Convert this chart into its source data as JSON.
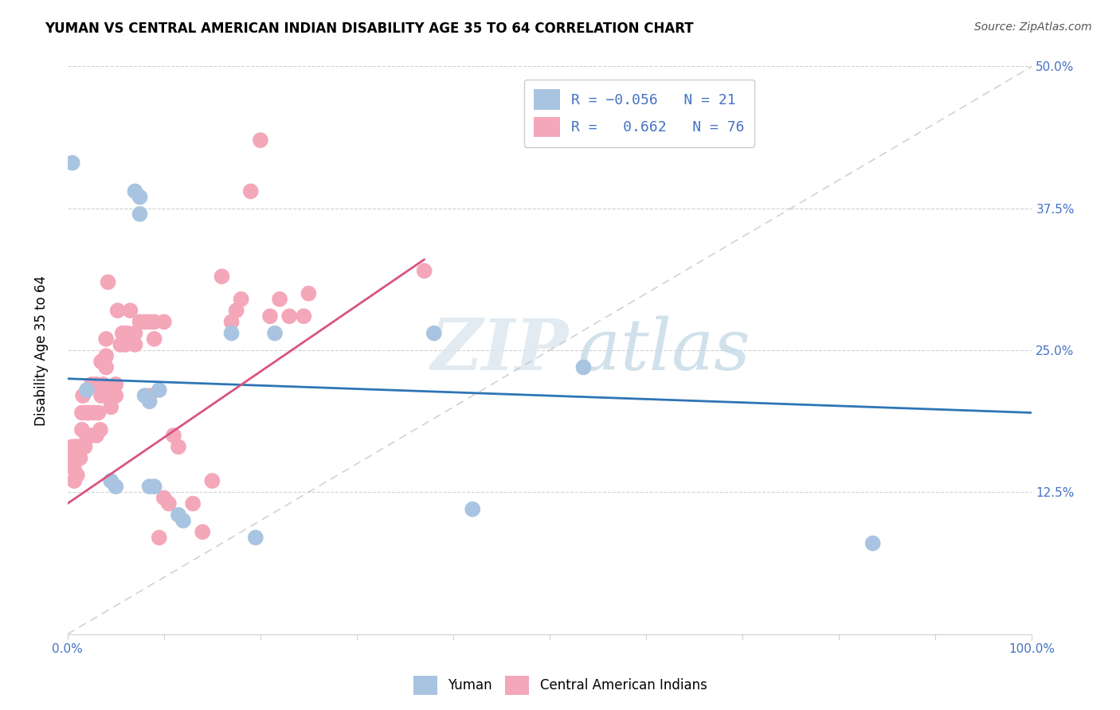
{
  "title": "YUMAN VS CENTRAL AMERICAN INDIAN DISABILITY AGE 35 TO 64 CORRELATION CHART",
  "source": "Source: ZipAtlas.com",
  "ylabel": "Disability Age 35 to 64",
  "xlim": [
    0,
    1.0
  ],
  "ylim": [
    0,
    0.5
  ],
  "x_ticks": [
    0.0,
    0.1,
    0.2,
    0.3,
    0.4,
    0.5,
    0.6,
    0.7,
    0.8,
    0.9,
    1.0
  ],
  "y_ticks": [
    0.0,
    0.125,
    0.25,
    0.375,
    0.5
  ],
  "y_tick_labels": [
    "",
    "12.5%",
    "25.0%",
    "37.5%",
    "50.0%"
  ],
  "blue_R": -0.056,
  "blue_N": 21,
  "pink_R": 0.662,
  "pink_N": 76,
  "blue_color": "#a8c4e0",
  "pink_color": "#f4a7b9",
  "blue_line_color": "#2e75b6",
  "pink_line_color": "#d9547e",
  "diag_color": "#c0c0c0",
  "watermark_zip": "ZIP",
  "watermark_atlas": "atlas",
  "legend_label_blue": "Yuman",
  "legend_label_pink": "Central American Indians",
  "blue_scatter_x": [
    0.005,
    0.02,
    0.045,
    0.05,
    0.07,
    0.075,
    0.075,
    0.08,
    0.085,
    0.085,
    0.09,
    0.095,
    0.115,
    0.12,
    0.17,
    0.195,
    0.215,
    0.38,
    0.42,
    0.535,
    0.835
  ],
  "blue_scatter_y": [
    0.415,
    0.215,
    0.135,
    0.13,
    0.39,
    0.385,
    0.37,
    0.21,
    0.205,
    0.13,
    0.13,
    0.215,
    0.105,
    0.1,
    0.265,
    0.085,
    0.265,
    0.265,
    0.11,
    0.235,
    0.08
  ],
  "pink_scatter_x": [
    0.002,
    0.003,
    0.004,
    0.005,
    0.005,
    0.006,
    0.007,
    0.007,
    0.008,
    0.009,
    0.01,
    0.01,
    0.01,
    0.012,
    0.013,
    0.014,
    0.015,
    0.015,
    0.016,
    0.018,
    0.02,
    0.02,
    0.022,
    0.025,
    0.025,
    0.027,
    0.03,
    0.03,
    0.032,
    0.034,
    0.035,
    0.035,
    0.037,
    0.04,
    0.04,
    0.04,
    0.042,
    0.045,
    0.047,
    0.05,
    0.05,
    0.052,
    0.055,
    0.057,
    0.06,
    0.062,
    0.065,
    0.07,
    0.07,
    0.075,
    0.08,
    0.085,
    0.085,
    0.09,
    0.09,
    0.095,
    0.1,
    0.1,
    0.105,
    0.11,
    0.115,
    0.13,
    0.14,
    0.15,
    0.16,
    0.17,
    0.175,
    0.18,
    0.19,
    0.2,
    0.21,
    0.22,
    0.23,
    0.245,
    0.25,
    0.37
  ],
  "pink_scatter_y": [
    0.155,
    0.16,
    0.155,
    0.165,
    0.155,
    0.16,
    0.135,
    0.145,
    0.165,
    0.155,
    0.14,
    0.155,
    0.165,
    0.165,
    0.155,
    0.165,
    0.18,
    0.195,
    0.21,
    0.165,
    0.195,
    0.175,
    0.195,
    0.175,
    0.22,
    0.195,
    0.175,
    0.22,
    0.195,
    0.18,
    0.21,
    0.24,
    0.22,
    0.235,
    0.245,
    0.26,
    0.31,
    0.2,
    0.21,
    0.22,
    0.21,
    0.285,
    0.255,
    0.265,
    0.255,
    0.265,
    0.285,
    0.255,
    0.265,
    0.275,
    0.275,
    0.21,
    0.275,
    0.26,
    0.275,
    0.085,
    0.12,
    0.275,
    0.115,
    0.175,
    0.165,
    0.115,
    0.09,
    0.135,
    0.315,
    0.275,
    0.285,
    0.295,
    0.39,
    0.435,
    0.28,
    0.295,
    0.28,
    0.28,
    0.3,
    0.32
  ],
  "blue_line_x": [
    0.0,
    1.0
  ],
  "blue_line_y": [
    0.225,
    0.195
  ],
  "pink_line_x": [
    0.0,
    0.37
  ],
  "pink_line_y": [
    0.115,
    0.33
  ]
}
